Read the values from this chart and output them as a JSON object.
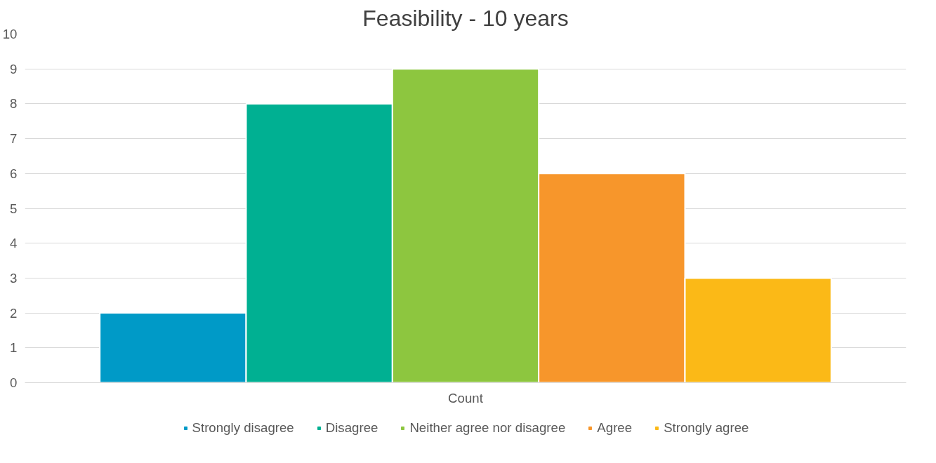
{
  "chart_data": {
    "type": "bar",
    "title": "Feasibility - 10 years",
    "categories": [
      "Count"
    ],
    "series": [
      {
        "name": "Strongly disagree",
        "color": "#009ac7",
        "values": [
          2
        ]
      },
      {
        "name": "Disagree",
        "color": "#00b092",
        "values": [
          8
        ]
      },
      {
        "name": "Neither agree nor disagree",
        "color": "#8dc63f",
        "values": [
          9
        ]
      },
      {
        "name": "Agree",
        "color": "#f7962b",
        "values": [
          6
        ]
      },
      {
        "name": "Strongly agree",
        "color": "#fbb917",
        "values": [
          3
        ]
      }
    ],
    "ylim": [
      0,
      10
    ],
    "yticks": [
      0,
      1,
      2,
      3,
      4,
      5,
      6,
      7,
      8,
      9,
      10
    ],
    "grid": "y",
    "legend": "bottom"
  }
}
